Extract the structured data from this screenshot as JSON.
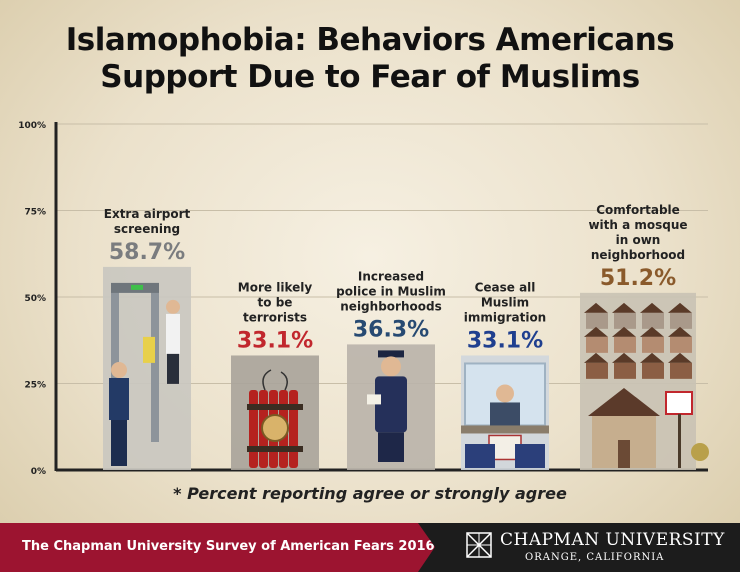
{
  "title_line1": "Islamophobia: Behaviors Americans",
  "title_line2": "Support Due to Fear of Muslims",
  "footnote": "* Percent reporting agree or strongly agree",
  "banner": {
    "survey": "The Chapman University Survey of American Fears 2016",
    "university": "CHAPMAN UNIVERSITY",
    "location": "ORANGE, CALIFORNIA"
  },
  "colors": {
    "gray_value": "#7a7c7f",
    "red_value": "#c1272d",
    "navy_value": "#274a72",
    "blue_value": "#1f3f8f",
    "brown_value": "#8a5a2b",
    "brand": "#9c1430"
  },
  "chart_data": {
    "type": "bar",
    "ylim": [
      0,
      100
    ],
    "yticks": [
      "0%",
      "25%",
      "50%",
      "75%",
      "100%"
    ],
    "grid": true,
    "categories": [
      "Extra airport screening",
      "More likely to be terrorists",
      "Increased police in Muslim neighborhoods",
      "Cease all Muslim immigration",
      "Comfortable with a mosque in own neighborhood"
    ],
    "values": [
      58.7,
      33.1,
      36.3,
      33.1,
      51.2
    ],
    "value_labels": [
      "58.7%",
      "33.1%",
      "36.3%",
      "33.1%",
      "51.2%"
    ],
    "label_lines": [
      [
        "Extra airport",
        "screening"
      ],
      [
        "More likely",
        "to be",
        "terrorists"
      ],
      [
        "Increased",
        "police in Muslim",
        "neighborhoods"
      ],
      [
        "Cease all",
        "Muslim",
        "immigration"
      ],
      [
        "Comfortable",
        "with a mosque",
        "in own",
        "neighborhood"
      ]
    ],
    "value_color_keys": [
      "gray_value",
      "red_value",
      "navy_value",
      "blue_value",
      "brown_value"
    ],
    "illustrations": [
      "airport-security-scanner",
      "dynamite-bomb",
      "police-officer",
      "immigration-passport-desk",
      "neighborhood-houses-for-sale"
    ]
  }
}
